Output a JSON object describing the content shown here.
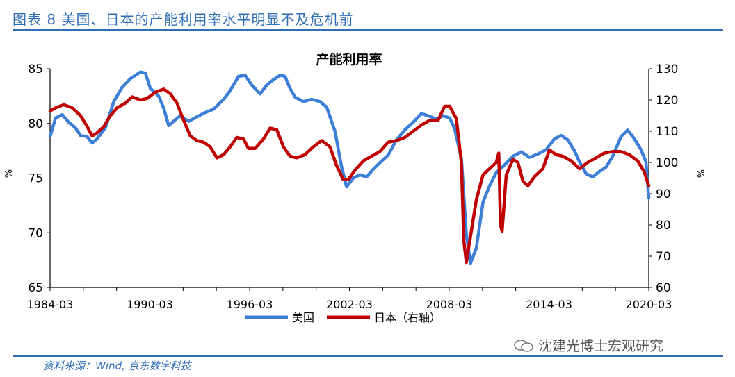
{
  "figure": {
    "title": "图表 8 美国、日本的产能利用率水平明显不及危机前",
    "source": "资料来源：Wind, 京东数字科技",
    "watermark": "沈建光博士宏观研究"
  },
  "chart_data": {
    "type": "line",
    "title": "产能利用率",
    "x_tick_labels": [
      "1984-03",
      "1990-03",
      "1996-03",
      "2002-03",
      "2008-03",
      "2014-03",
      "2020-03"
    ],
    "x_range": [
      1984.17,
      2020.17
    ],
    "left_axis": {
      "label": "%",
      "range": [
        65,
        85
      ],
      "ticks": [
        65,
        70,
        75,
        80,
        85
      ]
    },
    "right_axis": {
      "label": "%",
      "range": [
        60,
        130
      ],
      "ticks": [
        60,
        70,
        80,
        90,
        100,
        110,
        120,
        130
      ]
    },
    "legend_position": "bottom",
    "series": [
      {
        "name": "美国",
        "axis": "left",
        "color": "#3d7fd8",
        "points": [
          [
            1984.17,
            78.8
          ],
          [
            1984.5,
            80.5
          ],
          [
            1984.9,
            80.8
          ],
          [
            1985.3,
            80.1
          ],
          [
            1985.7,
            79.6
          ],
          [
            1986.0,
            78.9
          ],
          [
            1986.4,
            78.8
          ],
          [
            1986.7,
            78.2
          ],
          [
            1987.0,
            78.6
          ],
          [
            1987.5,
            79.6
          ],
          [
            1988.0,
            82.0
          ],
          [
            1988.5,
            83.3
          ],
          [
            1989.0,
            84.1
          ],
          [
            1989.6,
            84.7
          ],
          [
            1989.9,
            84.6
          ],
          [
            1990.2,
            83.2
          ],
          [
            1990.7,
            82.5
          ],
          [
            1991.0,
            81.4
          ],
          [
            1991.3,
            79.8
          ],
          [
            1991.6,
            80.2
          ],
          [
            1992.0,
            80.7
          ],
          [
            1992.5,
            80.2
          ],
          [
            1993.0,
            80.6
          ],
          [
            1993.5,
            81.0
          ],
          [
            1994.0,
            81.3
          ],
          [
            1994.6,
            82.2
          ],
          [
            1995.0,
            83.0
          ],
          [
            1995.5,
            84.3
          ],
          [
            1995.9,
            84.4
          ],
          [
            1996.3,
            83.5
          ],
          [
            1996.8,
            82.7
          ],
          [
            1997.2,
            83.5
          ],
          [
            1997.6,
            84.0
          ],
          [
            1998.0,
            84.4
          ],
          [
            1998.3,
            84.3
          ],
          [
            1998.6,
            83.2
          ],
          [
            1998.9,
            82.4
          ],
          [
            1999.4,
            82.0
          ],
          [
            1999.9,
            82.2
          ],
          [
            2000.4,
            82.0
          ],
          [
            2000.8,
            81.5
          ],
          [
            2001.3,
            79.3
          ],
          [
            2001.7,
            76.0
          ],
          [
            2002.0,
            74.2
          ],
          [
            2002.4,
            75.0
          ],
          [
            2002.8,
            75.3
          ],
          [
            2003.2,
            75.1
          ],
          [
            2003.6,
            75.8
          ],
          [
            2004.0,
            76.4
          ],
          [
            2004.5,
            77.1
          ],
          [
            2005.0,
            78.5
          ],
          [
            2005.5,
            79.4
          ],
          [
            2006.0,
            80.1
          ],
          [
            2006.5,
            80.9
          ],
          [
            2006.9,
            80.7
          ],
          [
            2007.4,
            80.4
          ],
          [
            2007.8,
            80.7
          ],
          [
            2008.2,
            80.5
          ],
          [
            2008.5,
            79.5
          ],
          [
            2008.9,
            76.8
          ],
          [
            2009.2,
            69.9
          ],
          [
            2009.45,
            67.2
          ],
          [
            2009.8,
            68.6
          ],
          [
            2010.2,
            72.8
          ],
          [
            2010.6,
            74.3
          ],
          [
            2011.0,
            75.5
          ],
          [
            2011.5,
            76.2
          ],
          [
            2012.0,
            77.0
          ],
          [
            2012.5,
            77.4
          ],
          [
            2013.0,
            76.9
          ],
          [
            2013.5,
            77.2
          ],
          [
            2014.0,
            77.6
          ],
          [
            2014.5,
            78.6
          ],
          [
            2014.9,
            78.9
          ],
          [
            2015.3,
            78.5
          ],
          [
            2015.7,
            77.5
          ],
          [
            2016.0,
            76.5
          ],
          [
            2016.4,
            75.4
          ],
          [
            2016.8,
            75.1
          ],
          [
            2017.2,
            75.6
          ],
          [
            2017.6,
            76.0
          ],
          [
            2018.0,
            77.0
          ],
          [
            2018.5,
            78.8
          ],
          [
            2018.9,
            79.4
          ],
          [
            2019.3,
            78.6
          ],
          [
            2019.7,
            77.6
          ],
          [
            2020.0,
            76.5
          ],
          [
            2020.17,
            73.2
          ]
        ]
      },
      {
        "name": "日本（右轴）",
        "axis": "right",
        "color": "#c00000",
        "points": [
          [
            1984.17,
            116.5
          ],
          [
            1984.5,
            117.5
          ],
          [
            1985.0,
            118.5
          ],
          [
            1985.5,
            117.5
          ],
          [
            1986.0,
            115.0
          ],
          [
            1986.4,
            111.5
          ],
          [
            1986.7,
            108.5
          ],
          [
            1987.0,
            109.5
          ],
          [
            1987.4,
            111.5
          ],
          [
            1987.8,
            115.0
          ],
          [
            1988.2,
            117.5
          ],
          [
            1988.7,
            119.0
          ],
          [
            1989.1,
            121.0
          ],
          [
            1989.6,
            120.0
          ],
          [
            1990.0,
            120.5
          ],
          [
            1990.5,
            122.5
          ],
          [
            1991.0,
            123.5
          ],
          [
            1991.4,
            122.0
          ],
          [
            1991.8,
            119.0
          ],
          [
            1992.2,
            113.5
          ],
          [
            1992.6,
            108.5
          ],
          [
            1993.0,
            107.0
          ],
          [
            1993.4,
            106.5
          ],
          [
            1993.8,
            105.0
          ],
          [
            1994.2,
            101.5
          ],
          [
            1994.6,
            102.5
          ],
          [
            1995.0,
            105.0
          ],
          [
            1995.4,
            108.0
          ],
          [
            1995.8,
            107.5
          ],
          [
            1996.1,
            104.5
          ],
          [
            1996.5,
            104.5
          ],
          [
            1997.0,
            107.5
          ],
          [
            1997.4,
            111.0
          ],
          [
            1997.8,
            110.5
          ],
          [
            1998.2,
            105.0
          ],
          [
            1998.6,
            102.0
          ],
          [
            1999.0,
            101.5
          ],
          [
            1999.5,
            102.5
          ],
          [
            2000.0,
            105.0
          ],
          [
            2000.5,
            107.0
          ],
          [
            2001.0,
            105.0
          ],
          [
            2001.4,
            99.0
          ],
          [
            2001.8,
            94.5
          ],
          [
            2002.1,
            94.5
          ],
          [
            2002.5,
            97.5
          ],
          [
            2003.0,
            100.5
          ],
          [
            2003.5,
            102.0
          ],
          [
            2004.0,
            103.5
          ],
          [
            2004.5,
            106.5
          ],
          [
            2005.0,
            107.0
          ],
          [
            2005.5,
            108.0
          ],
          [
            2006.0,
            110.0
          ],
          [
            2006.5,
            112.0
          ],
          [
            2007.0,
            113.5
          ],
          [
            2007.5,
            113.5
          ],
          [
            2007.9,
            118.0
          ],
          [
            2008.2,
            118.0
          ],
          [
            2008.6,
            114.0
          ],
          [
            2008.9,
            100.0
          ],
          [
            2009.05,
            75.0
          ],
          [
            2009.2,
            68.0
          ],
          [
            2009.5,
            78.0
          ],
          [
            2009.8,
            88.0
          ],
          [
            2010.2,
            96.0
          ],
          [
            2010.6,
            98.0
          ],
          [
            2011.0,
            100.0
          ],
          [
            2011.15,
            103.0
          ],
          [
            2011.25,
            80.0
          ],
          [
            2011.35,
            78.0
          ],
          [
            2011.6,
            96.0
          ],
          [
            2012.0,
            101.0
          ],
          [
            2012.3,
            100.0
          ],
          [
            2012.6,
            94.0
          ],
          [
            2012.9,
            92.5
          ],
          [
            2013.3,
            95.5
          ],
          [
            2013.8,
            98.0
          ],
          [
            2014.2,
            104.0
          ],
          [
            2014.6,
            102.5
          ],
          [
            2015.0,
            102.0
          ],
          [
            2015.5,
            100.5
          ],
          [
            2016.0,
            98.0
          ],
          [
            2016.5,
            100.0
          ],
          [
            2017.0,
            101.5
          ],
          [
            2017.5,
            103.0
          ],
          [
            2018.0,
            103.5
          ],
          [
            2018.5,
            103.5
          ],
          [
            2019.0,
            102.5
          ],
          [
            2019.5,
            100.5
          ],
          [
            2019.9,
            97.0
          ],
          [
            2020.17,
            92.5
          ]
        ]
      }
    ]
  }
}
